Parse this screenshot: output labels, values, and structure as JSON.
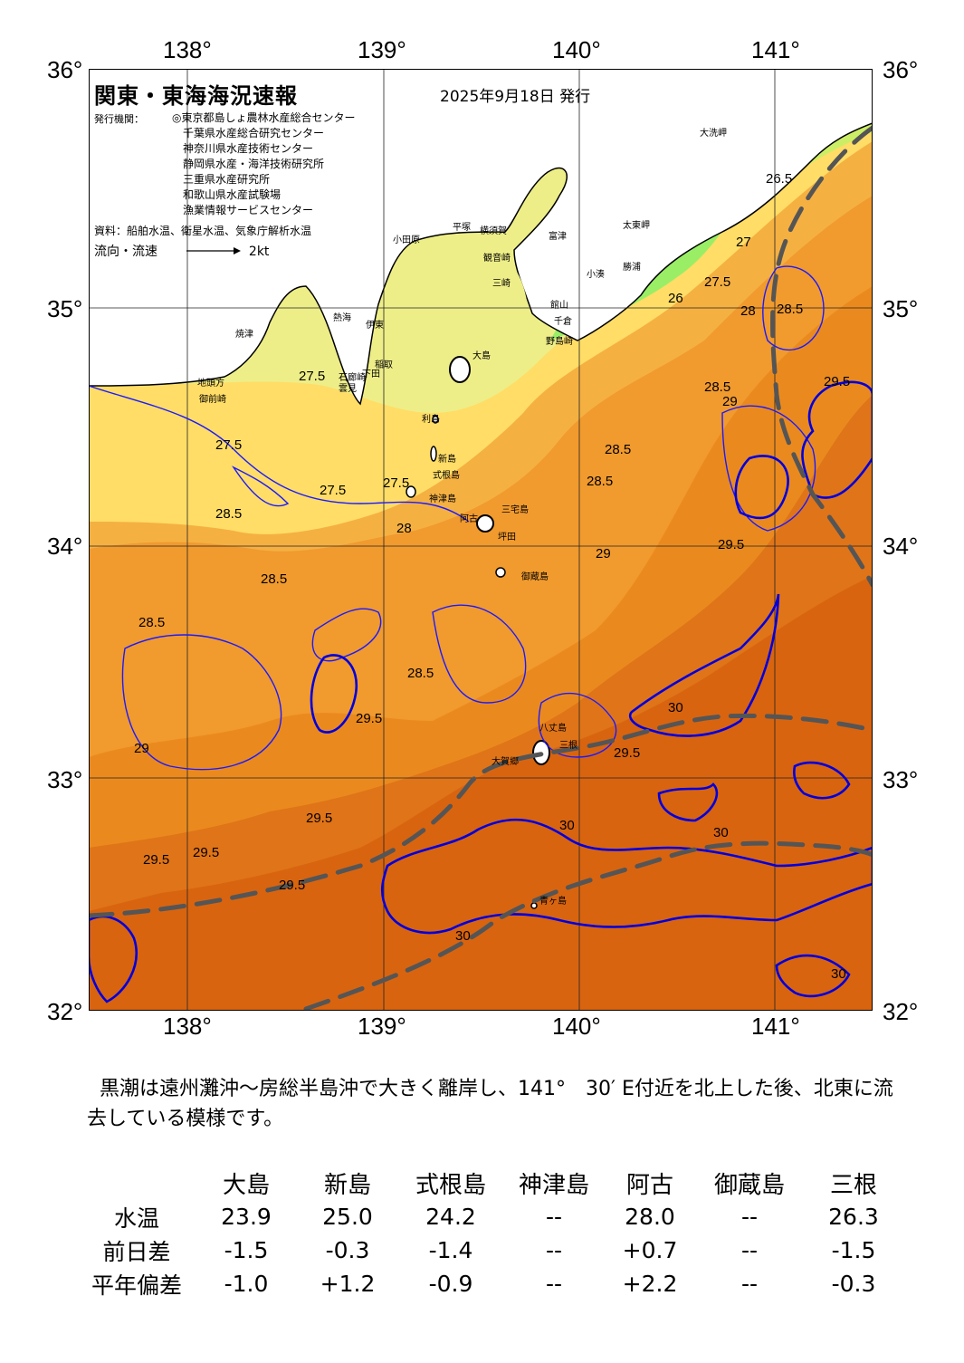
{
  "header": {
    "title": "関東・東海海況速報",
    "date": "2025年9月18日 発行",
    "issuer_label": "発行機関：",
    "issuers": [
      "◎東京都島しょ農林水産総合センター",
      "千葉県水産総合研究センター",
      "神奈川県水産技術センター",
      "静岡県水産・海洋技術研究所",
      "三重県水産研究所",
      "和歌山県水産試験場",
      "漁業情報サービスセンター"
    ],
    "source": "資料：船舶水温、衛星水温、気象庁解析水温",
    "flow_label": "流向・流速",
    "flow_scale": "2kt"
  },
  "axes": {
    "lon_top": [
      "138°",
      "139°",
      "140°",
      "141°"
    ],
    "lon_bottom": [
      "138°",
      "139°",
      "140°",
      "141°"
    ],
    "lat_left": [
      "36°",
      "35°",
      "34°",
      "33°",
      "32°"
    ],
    "lat_right": [
      "36°",
      "35°",
      "34°",
      "33°",
      "32°"
    ]
  },
  "map": {
    "colors": {
      "land": "#ffffff",
      "t26": "#99ee66",
      "t265": "#ccee66",
      "t27": "#eeee88",
      "t275": "#ffdd66",
      "t28": "#f5b042",
      "t285": "#f19a2e",
      "t29": "#ea8a1e",
      "t295": "#e07418",
      "t30": "#d86410",
      "isoline": "#1a1aff",
      "isoline_30": "#0000dd",
      "kuroshio_axis": "#555555"
    },
    "places": [
      "大洗岬",
      "太東岬",
      "野島崎",
      "小湊",
      "勝浦",
      "館山",
      "千倉",
      "三崎",
      "観音崎",
      "富津",
      "横須賀",
      "平塚",
      "小田原",
      "熱海",
      "伊東",
      "稲取",
      "下田",
      "石廊崎",
      "雲見",
      "焼津",
      "地頭方",
      "御前崎",
      "大島",
      "利島",
      "新島",
      "式根島",
      "神津島",
      "三宅島",
      "坪田",
      "阿古",
      "御蔵島",
      "八丈島",
      "三根",
      "大賀郷",
      "青ヶ島"
    ],
    "isotherm_labels": [
      "26",
      "26.5",
      "27",
      "27.5",
      "28",
      "28.5",
      "29",
      "29.5",
      "30"
    ]
  },
  "description": "黒潮は遠州灘沖～房総半島沖で大きく離岸し、141°　30′ E付近を北上した後、北東に流去している模様です。",
  "table": {
    "stations": [
      "大島",
      "新島",
      "式根島",
      "神津島",
      "阿古",
      "御蔵島",
      "三根"
    ],
    "rows": [
      {
        "label": "水温",
        "values": [
          "23.9",
          "25.0",
          "24.2",
          "--",
          "28.0",
          "--",
          "26.3"
        ]
      },
      {
        "label": "前日差",
        "values": [
          "-1.5",
          "-0.3",
          "-1.4",
          "--",
          "+0.7",
          "--",
          "-1.5"
        ]
      },
      {
        "label": "平年偏差",
        "values": [
          "-1.0",
          "+1.2",
          "-0.9",
          "--",
          "+2.2",
          "--",
          "-0.3"
        ]
      }
    ]
  }
}
